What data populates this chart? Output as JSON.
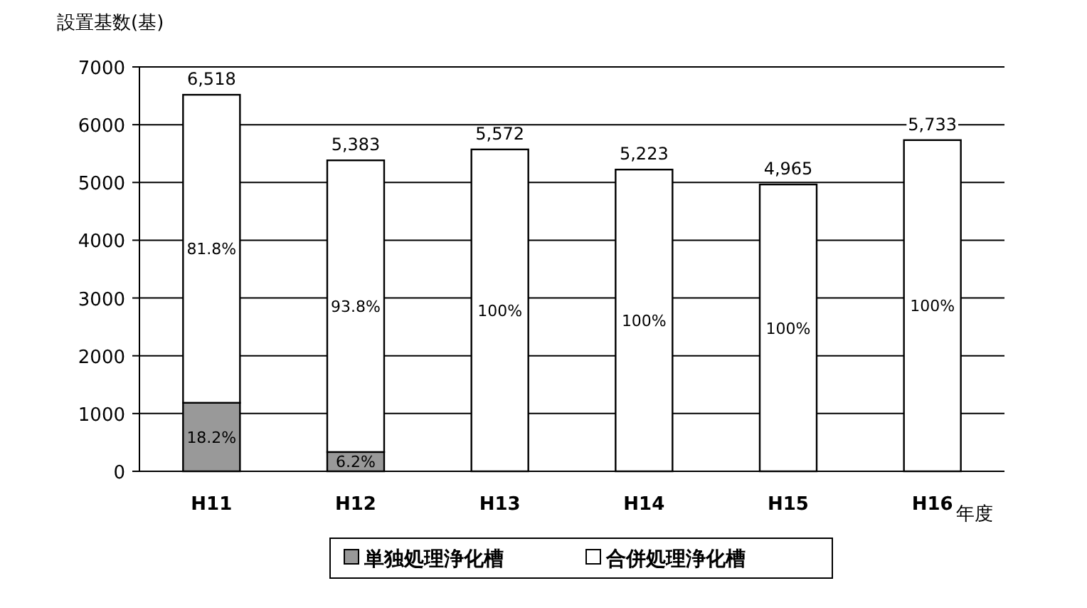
{
  "chart_data": {
    "type": "bar",
    "stacked": true,
    "ylabel": "設置基数(基)",
    "xlabel": "年度",
    "categories": [
      "H11",
      "H12",
      "H13",
      "H14",
      "H15",
      "H16"
    ],
    "series": [
      {
        "name": "単独処理浄化槽",
        "color": "#999999",
        "values": [
          1186,
          334,
          0,
          0,
          0,
          0
        ]
      },
      {
        "name": "合併処理浄化槽",
        "color": "#ffffff",
        "values": [
          5332,
          5049,
          5572,
          5223,
          4965,
          5733
        ]
      }
    ],
    "annotations": [
      "18.2%",
      "6.2%",
      "81.8%",
      "93.8%",
      "100%",
      "100%",
      "100%",
      "100%"
    ],
    "totals": [
      "6,518",
      "5,383",
      "5,572",
      "5,223",
      "4,965",
      "5,733"
    ],
    "ylim": [
      0,
      7000
    ],
    "yticks": [
      0,
      1000,
      2000,
      3000,
      4000,
      5000,
      6000,
      7000
    ],
    "grid": "y",
    "legend": "bottom"
  }
}
